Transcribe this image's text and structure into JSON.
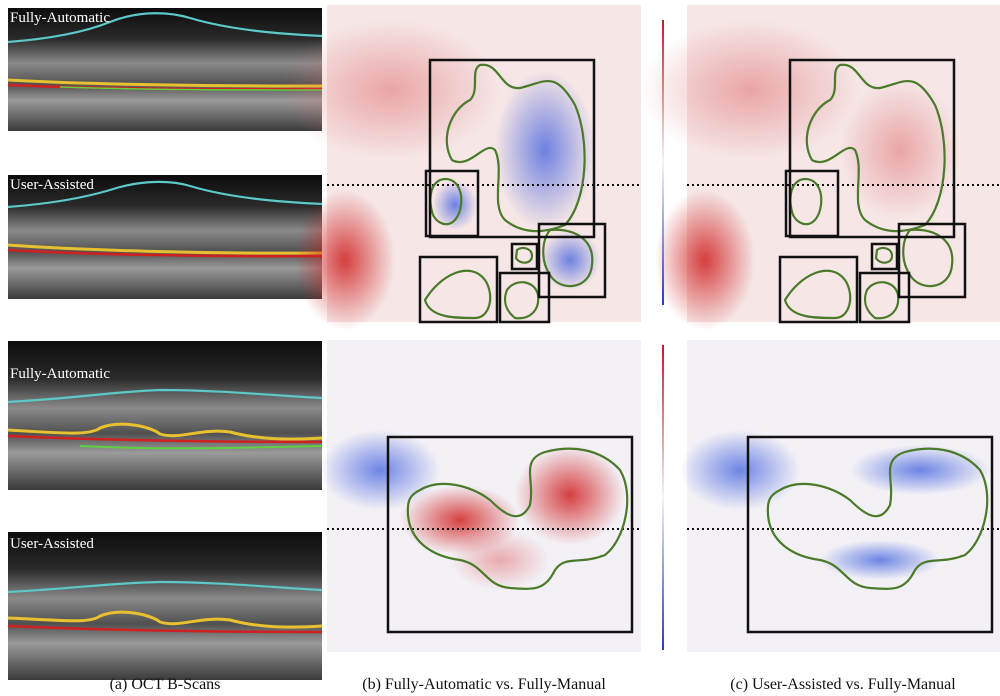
{
  "figure": {
    "oct_labels": [
      "Fully-Automatic",
      "User-Assisted",
      "Fully-Automatic",
      "User-Assisted"
    ],
    "captions": [
      "(a) OCT B-Scans",
      "(b) Fully-Automatic vs. Fully-Manual",
      "(c) User-Assisted vs. Fully-Manual"
    ]
  }
}
